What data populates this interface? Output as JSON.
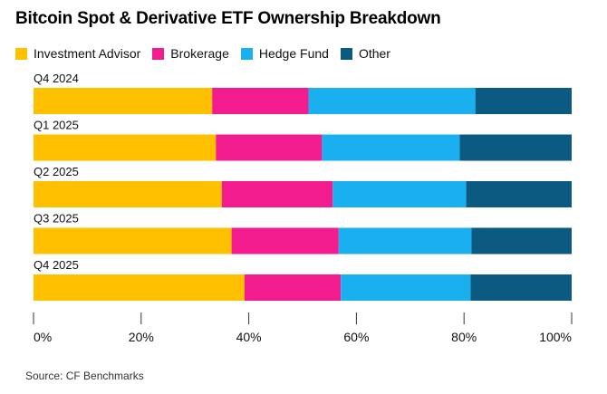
{
  "title": "Bitcoin Spot & Derivative ETF Ownership Breakdown",
  "source": "Source: CF Benchmarks",
  "colors": {
    "investment_advisor": "#FFC000",
    "brokerage": "#F21C8F",
    "hedge_fund": "#1AB0F0",
    "other": "#0B5A82"
  },
  "legend": [
    {
      "label": "Investment Advisor",
      "color": "#FFC000"
    },
    {
      "label": "Brokerage",
      "color": "#F21C8F"
    },
    {
      "label": "Hedge Fund",
      "color": "#1AB0F0"
    },
    {
      "label": "Other",
      "color": "#0B5A82"
    }
  ],
  "chart_data": {
    "type": "bar",
    "orientation": "horizontal",
    "stacked": true,
    "title": "Bitcoin Spot & Derivative ETF Ownership Breakdown",
    "xlabel": "",
    "ylabel": "",
    "xlim": [
      0,
      100
    ],
    "x_ticks": [
      "0%",
      "20%",
      "40%",
      "60%",
      "80%",
      "100%"
    ],
    "grid": false,
    "legend_position": "top-left",
    "categories": [
      "Q4 2024",
      "Q1 2025",
      "Q2 2025",
      "Q3 2025",
      "Q4 2025"
    ],
    "series": [
      {
        "name": "Investment Advisor",
        "color": "#FFC000",
        "values": [
          33.2,
          33.9,
          35.0,
          36.8,
          39.2
        ]
      },
      {
        "name": "Brokerage",
        "color": "#F21C8F",
        "values": [
          17.9,
          19.7,
          20.6,
          19.9,
          17.9
        ]
      },
      {
        "name": "Hedge Fund",
        "color": "#1AB0F0",
        "values": [
          31.0,
          25.6,
          24.8,
          24.7,
          24.1
        ]
      },
      {
        "name": "Other",
        "color": "#0B5A82",
        "values": [
          17.9,
          20.8,
          19.6,
          18.6,
          18.8
        ]
      }
    ]
  }
}
